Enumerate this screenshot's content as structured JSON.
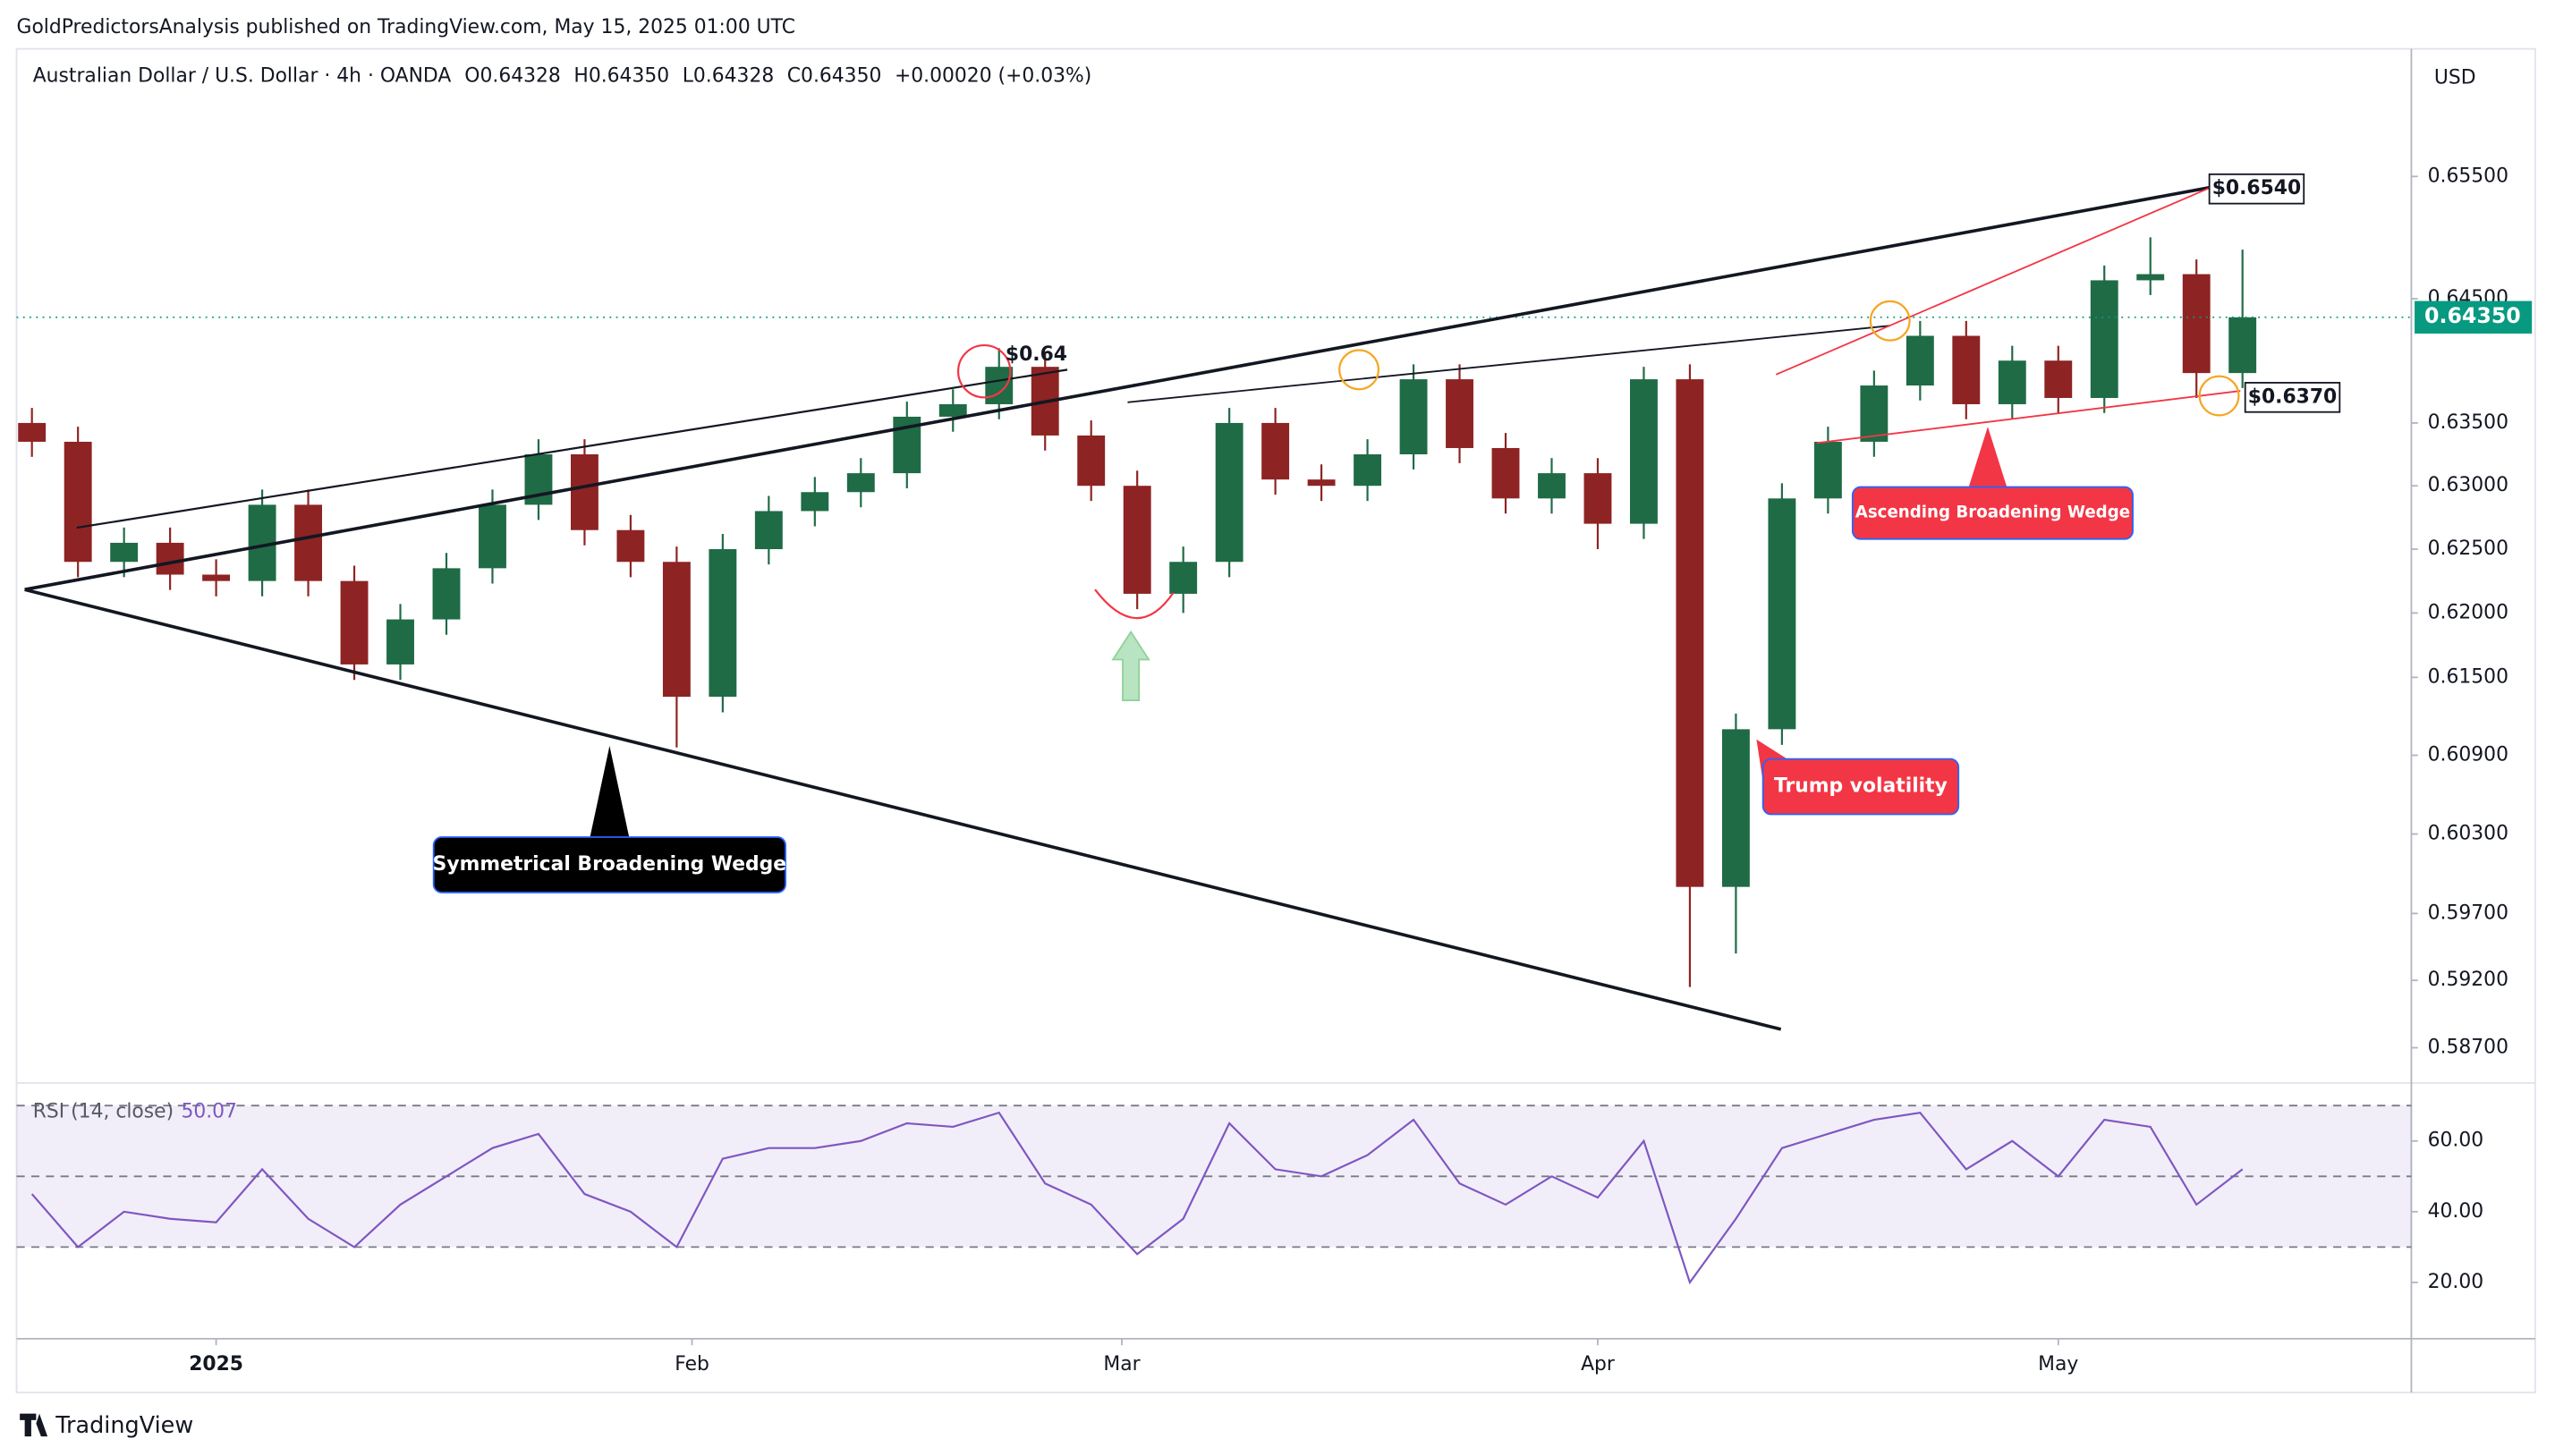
{
  "page": {
    "published": "GoldPredictorsAnalysis published on TradingView.com, May 15, 2025 01:00 UTC",
    "brand": "TradingView"
  },
  "chart_data": [
    {
      "type": "candlestick",
      "title": "Australian Dollar / U.S. Dollar · 4h · OANDA",
      "ohlc_legend": [
        "O0.64328",
        "H0.64350",
        "L0.64328",
        "C0.64350",
        "+0.00020 (+0.03%)"
      ],
      "x": [
        -12,
        -9,
        -6,
        -3,
        0,
        3,
        6,
        9,
        12,
        15,
        18,
        21,
        24,
        27,
        30,
        33,
        36,
        39,
        42,
        45,
        48,
        51,
        54,
        57,
        60,
        63,
        66,
        69,
        72,
        75,
        78,
        81,
        84,
        87,
        90,
        93,
        96,
        99,
        102,
        105,
        108,
        111,
        114,
        117,
        120,
        123,
        126,
        129,
        132
      ],
      "open": [
        0.635,
        0.6335,
        0.624,
        0.6255,
        0.623,
        0.6225,
        0.6285,
        0.6225,
        0.616,
        0.6195,
        0.6235,
        0.6285,
        0.6325,
        0.6265,
        0.624,
        0.6135,
        0.625,
        0.628,
        0.6295,
        0.631,
        0.6355,
        0.6365,
        0.6395,
        0.634,
        0.63,
        0.6215,
        0.624,
        0.635,
        0.6305,
        0.63,
        0.6325,
        0.6385,
        0.633,
        0.629,
        0.631,
        0.627,
        0.6385,
        0.599,
        0.611,
        0.629,
        0.6335,
        0.638,
        0.642,
        0.6365,
        0.64,
        0.637,
        0.6465,
        0.647,
        0.639
      ],
      "high": [
        0.6362,
        0.6347,
        0.6267,
        0.6267,
        0.6242,
        0.6297,
        0.6297,
        0.6237,
        0.6207,
        0.6247,
        0.6297,
        0.6337,
        0.6337,
        0.6277,
        0.6252,
        0.6262,
        0.6292,
        0.6307,
        0.6322,
        0.6367,
        0.6377,
        0.641,
        0.6407,
        0.6352,
        0.6312,
        0.6252,
        0.6362,
        0.6362,
        0.6317,
        0.6337,
        0.6397,
        0.6397,
        0.6342,
        0.6322,
        0.6322,
        0.6395,
        0.6397,
        0.6122,
        0.6302,
        0.6347,
        0.6392,
        0.6432,
        0.6432,
        0.6412,
        0.6412,
        0.6477,
        0.65,
        0.6482,
        0.649
      ],
      "low": [
        0.6323,
        0.6228,
        0.6228,
        0.6218,
        0.6213,
        0.6213,
        0.6213,
        0.6148,
        0.6148,
        0.6183,
        0.6223,
        0.6273,
        0.6253,
        0.6228,
        0.6096,
        0.6123,
        0.6238,
        0.6268,
        0.6283,
        0.6298,
        0.6343,
        0.6353,
        0.6328,
        0.6288,
        0.6203,
        0.62,
        0.6228,
        0.6293,
        0.6288,
        0.6288,
        0.6313,
        0.6318,
        0.6278,
        0.6278,
        0.625,
        0.6258,
        0.5915,
        0.594,
        0.6098,
        0.6278,
        0.6323,
        0.6368,
        0.6353,
        0.6353,
        0.6358,
        0.6358,
        0.6453,
        0.637,
        0.6378
      ],
      "close": [
        0.6335,
        0.624,
        0.6255,
        0.623,
        0.6225,
        0.6285,
        0.6225,
        0.616,
        0.6195,
        0.6235,
        0.6285,
        0.6325,
        0.6265,
        0.624,
        0.6135,
        0.625,
        0.628,
        0.6295,
        0.631,
        0.6355,
        0.6365,
        0.6395,
        0.634,
        0.63,
        0.6215,
        0.624,
        0.635,
        0.6305,
        0.63,
        0.6325,
        0.6385,
        0.633,
        0.629,
        0.631,
        0.627,
        0.6385,
        0.599,
        0.611,
        0.629,
        0.6335,
        0.638,
        0.642,
        0.6365,
        0.64,
        0.637,
        0.6465,
        0.647,
        0.639,
        0.6435
      ],
      "up_color": "#1f6b45",
      "down_color": "#8e2323",
      "xlim": [
        -13,
        143
      ],
      "xticks": [
        {
          "value": 0,
          "label": "2025"
        },
        {
          "value": 31,
          "label": "Feb"
        },
        {
          "value": 59,
          "label": "Mar"
        },
        {
          "value": 90,
          "label": "Apr"
        },
        {
          "value": 120,
          "label": "May"
        }
      ],
      "ylim": [
        0.5844,
        0.6656
      ],
      "log": true,
      "grid": false,
      "y_unit": "USD",
      "yticks": [
        {
          "value": 0.655,
          "label": "0.65500"
        },
        {
          "value": 0.645,
          "label": "0.64500"
        },
        {
          "value": 0.635,
          "label": "0.63500"
        },
        {
          "value": 0.63,
          "label": "0.63000"
        },
        {
          "value": 0.625,
          "label": "0.62500"
        },
        {
          "value": 0.62,
          "label": "0.62000"
        },
        {
          "value": 0.615,
          "label": "0.61500"
        },
        {
          "value": 0.609,
          "label": "0.60900"
        },
        {
          "value": 0.603,
          "label": "0.60300"
        },
        {
          "value": 0.597,
          "label": "0.59700"
        },
        {
          "value": 0.592,
          "label": "0.59200"
        },
        {
          "value": 0.587,
          "label": "0.58700"
        }
      ],
      "last_price": {
        "value": 0.6435,
        "label": "0.64350"
      },
      "last_price_color": "#089981",
      "annotations": [
        "$0.64",
        "$0.6540",
        "$0.6370",
        "Symmetrical Broadening Wedge",
        "Ascending Broadening Wedge",
        "Trump volatility"
      ]
    },
    {
      "type": "line",
      "title": "RSI (14, close)",
      "last_value": {
        "value": 50.07,
        "label": "50.07"
      },
      "x": [
        -12,
        -9,
        -6,
        -3,
        0,
        3,
        6,
        9,
        12,
        15,
        18,
        21,
        24,
        27,
        30,
        33,
        36,
        39,
        42,
        45,
        48,
        51,
        54,
        57,
        60,
        63,
        66,
        69,
        72,
        75,
        78,
        81,
        84,
        87,
        90,
        93,
        96,
        99,
        102,
        105,
        108,
        111,
        114,
        117,
        120,
        123,
        126,
        129,
        132
      ],
      "series": [
        {
          "color": "#7e57c2",
          "values": [
            45,
            30,
            40,
            38,
            37,
            52,
            38,
            30,
            42,
            50,
            58,
            62,
            45,
            40,
            30,
            55,
            58,
            58,
            60,
            65,
            64,
            68,
            48,
            42,
            28,
            38,
            65,
            52,
            50,
            56,
            66,
            48,
            42,
            50,
            44,
            60,
            20,
            38,
            58,
            62,
            66,
            68,
            52,
            60,
            50,
            66,
            64,
            42,
            52
          ]
        }
      ],
      "xlim": [
        -13,
        143
      ],
      "ylim": [
        5,
        75
      ],
      "yticks": [
        {
          "value": 20,
          "label": "20.00"
        },
        {
          "value": 40,
          "label": "40.00"
        },
        {
          "value": 60,
          "label": "60.00"
        }
      ],
      "bands": [
        30,
        50,
        70
      ],
      "band_color": "#7e57c2"
    }
  ]
}
